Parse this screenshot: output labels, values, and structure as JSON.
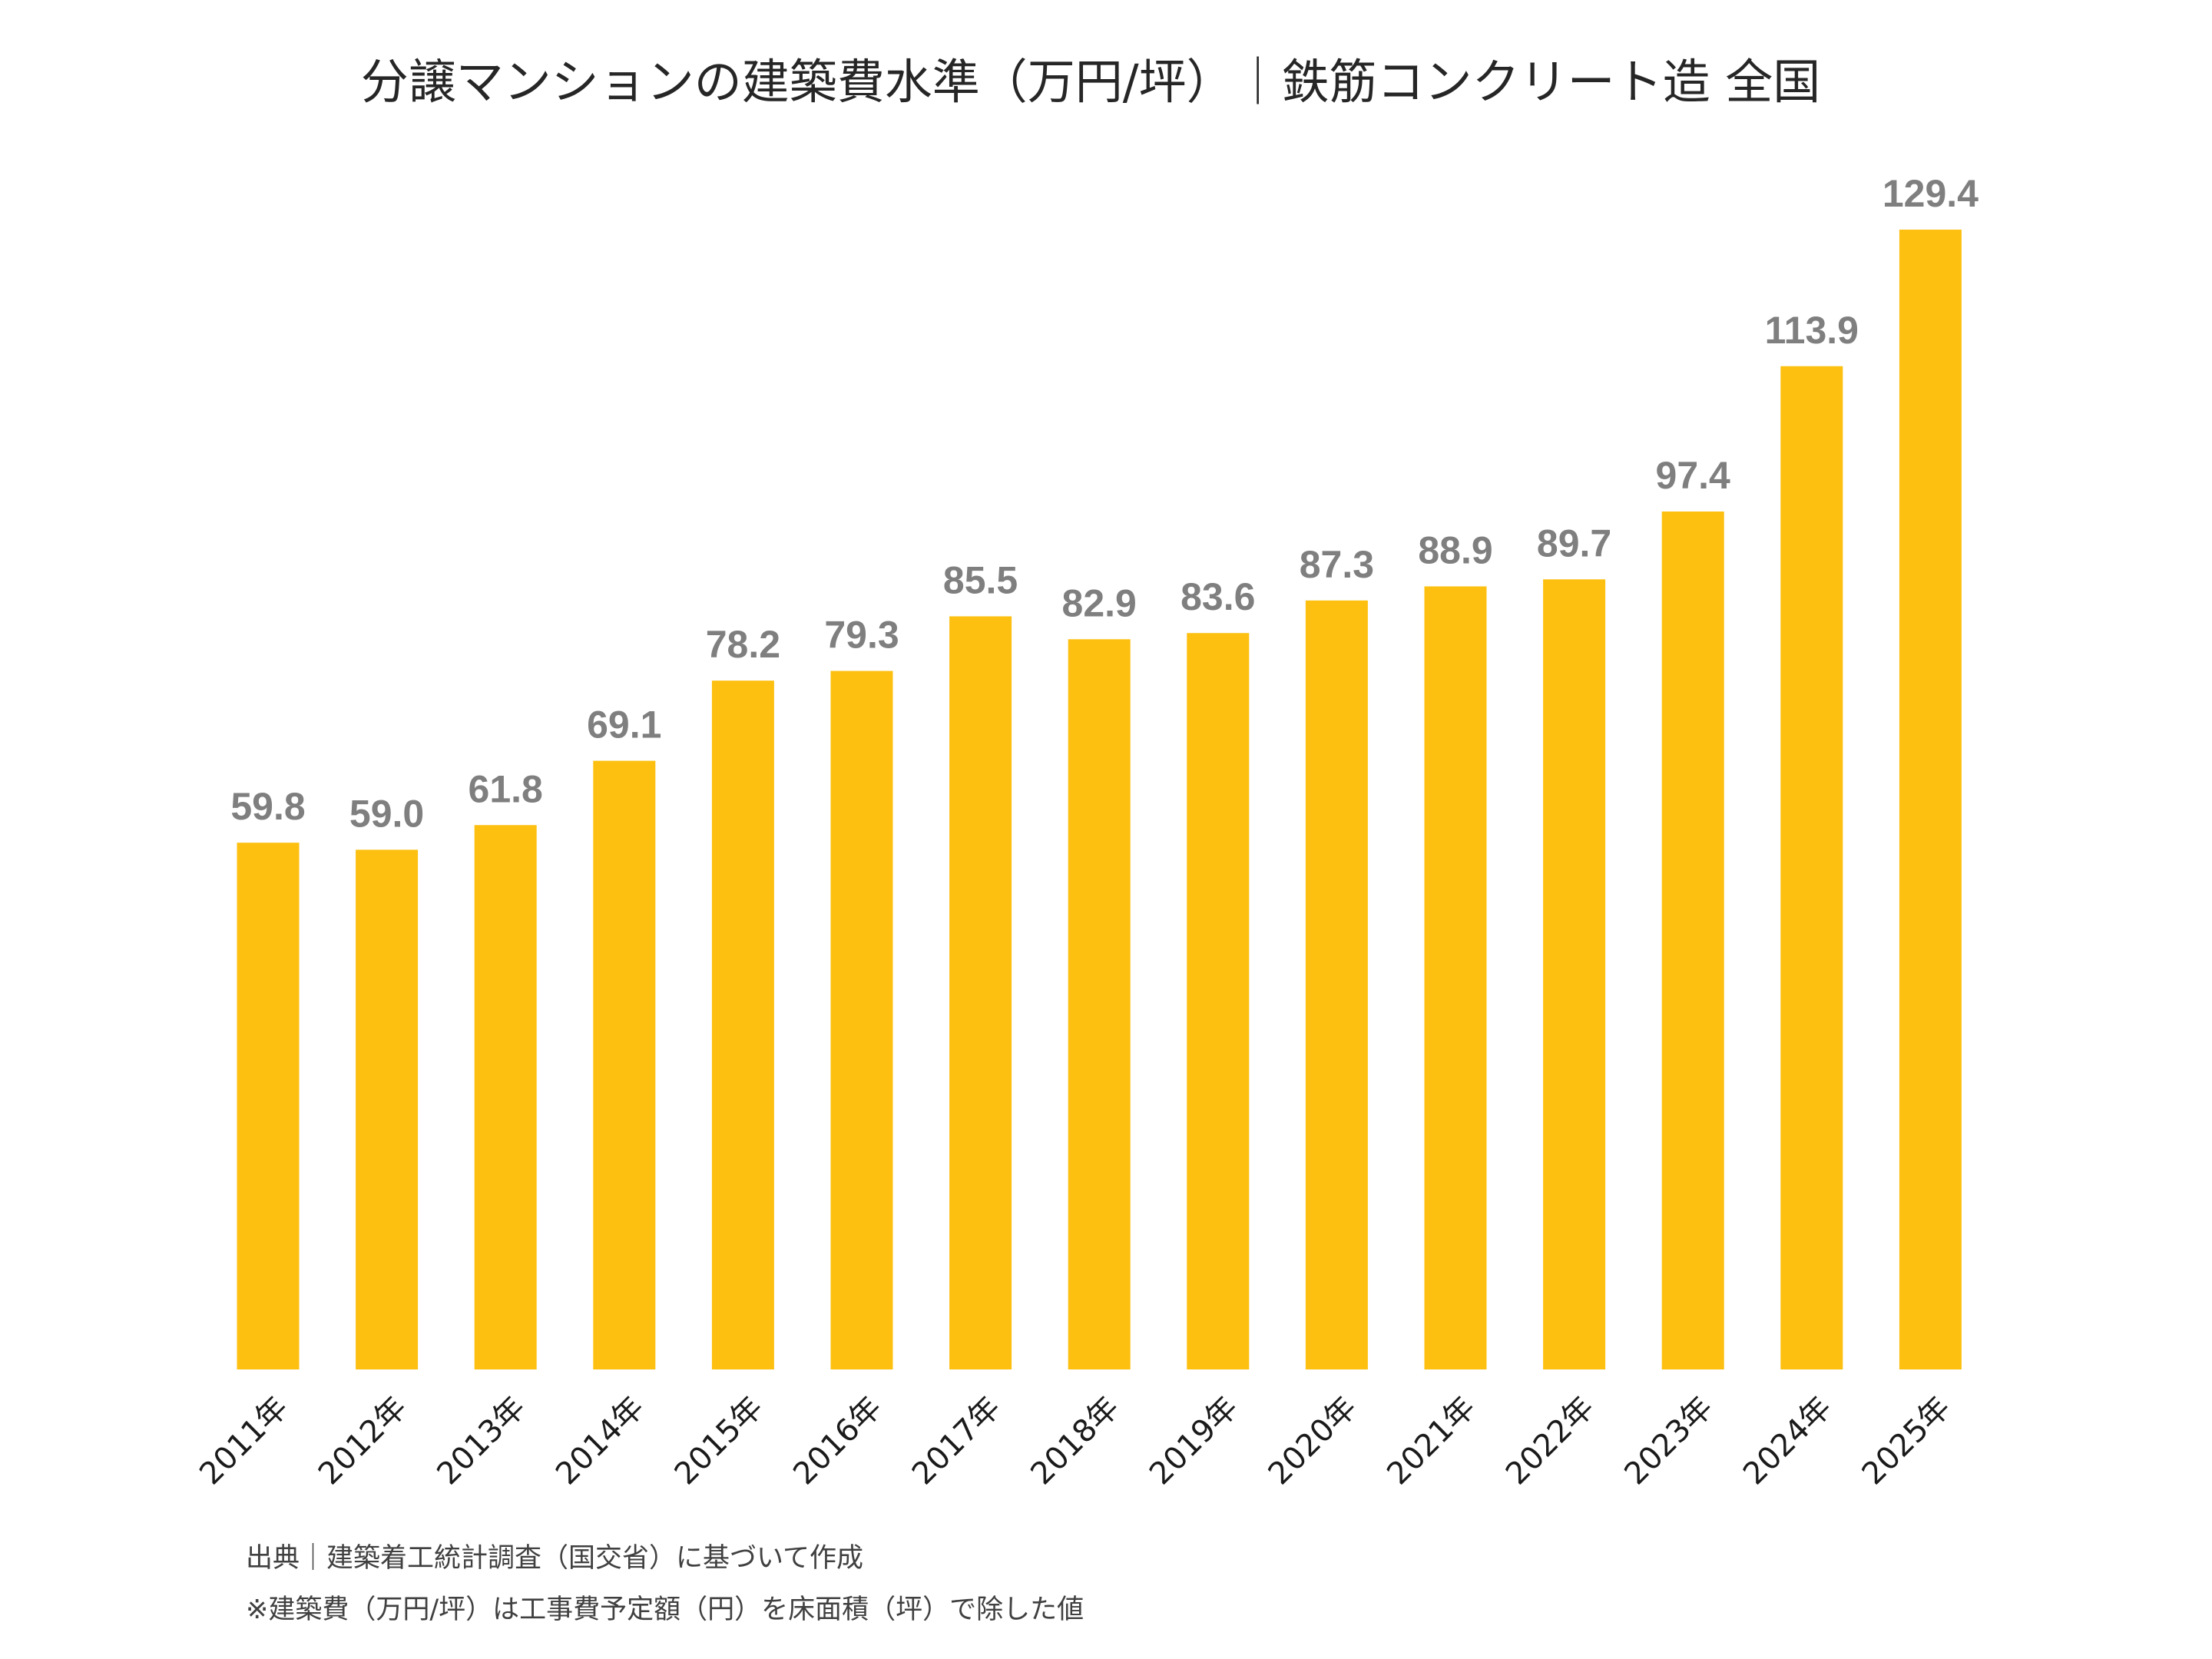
{
  "colors": {
    "bar": "#FDC010",
    "data_label": "#7F7F7F"
  },
  "chart_data": {
    "type": "bar",
    "title": "分譲マンションの建築費水準（万円/坪）｜鉄筋コンクリート造  全国",
    "xlabel": "",
    "ylabel": "",
    "categories": [
      "2011年",
      "2012年",
      "2013年",
      "2014年",
      "2015年",
      "2016年",
      "2017年",
      "2018年",
      "2019年",
      "2020年",
      "2021年",
      "2022年",
      "2023年",
      "2024年",
      "2025年"
    ],
    "values": [
      59.8,
      59.0,
      61.8,
      69.1,
      78.2,
      79.3,
      85.5,
      82.9,
      83.6,
      87.3,
      88.9,
      89.7,
      97.4,
      113.9,
      129.4
    ],
    "data_labels": [
      "59.8",
      "59.0",
      "61.8",
      "69.1",
      "78.2",
      "79.3",
      "85.5",
      "82.9",
      "83.6",
      "87.3",
      "88.9",
      "89.7",
      "97.4",
      "113.9",
      "129.4"
    ],
    "ylim": [
      0,
      129.4
    ],
    "grid": false,
    "legend": "none"
  },
  "notes": {
    "source": "出典｜建築着工統計調査（国交省）に基づいて作成",
    "footnote": "※建築費（万円/坪）は工事費予定額（円）を床面積（坪）で除した値"
  }
}
